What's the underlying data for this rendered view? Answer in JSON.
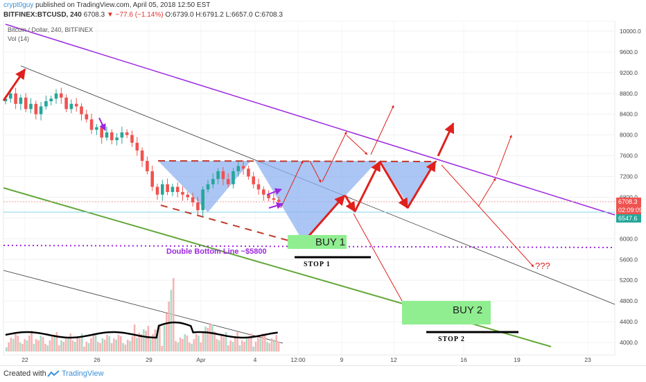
{
  "header": {
    "author": "crypt0guy",
    "published": "published on TradingView.com, April 05, 2018 12:50 EST",
    "symbol": "BITFINEX:BTCUSD, 240",
    "price": "6708.3",
    "change": "▼ −77.6 (−1.14%)",
    "ohlc": "O:6739.0 H:6791.2 L:6657.0 C:6708.3"
  },
  "chart_data": {
    "type": "candlestick",
    "title": "Bitcoin / Dollar, 240, BITFINEX",
    "indicator": "Vol (14)",
    "ylim": [
      3800,
      10200
    ],
    "y_ticks": [
      4000,
      4400,
      4800,
      5200,
      5600,
      6000,
      6400,
      6800,
      7200,
      7600,
      8000,
      8400,
      8800,
      9200,
      9600,
      10000
    ],
    "y_tick_labels": [
      "4000.0",
      "4400.0",
      "4800.0",
      "5200.0",
      "5600.0",
      "6000.0",
      "6400.0",
      "6800.0",
      "7200.0",
      "7600.0",
      "8000.0",
      "8400.0",
      "8800.0",
      "9200.0",
      "9600.0",
      "10000.0"
    ],
    "x_ticks": [
      "22",
      "26",
      "29",
      "Apr",
      "4",
      "12:00",
      "9",
      "12",
      "16",
      "19",
      "23"
    ],
    "price_badges": [
      "6708.3",
      "02:09:09",
      "6547.6"
    ],
    "close": [
      8700,
      8800,
      8600,
      8720,
      8500,
      8600,
      8400,
      8550,
      8650,
      8700,
      8800,
      8720,
      8500,
      8600,
      8550,
      8400,
      8300,
      8100,
      8150,
      7950,
      8050,
      7900,
      7950,
      8050,
      8000,
      7850,
      7700,
      7500,
      7300,
      7000,
      6850,
      7050,
      6900,
      7000,
      6900,
      6850,
      6800,
      6700,
      6550,
      6950,
      7050,
      7150,
      7300,
      7150,
      7050,
      7300,
      7400,
      7350,
      7200,
      7050,
      6950,
      6850,
      6780,
      6750,
      6708
    ]
  },
  "annotations": {
    "double_bottom": "Double Bottom Line ~$5800",
    "buy1": "BUY 1",
    "buy2": "BUY 2",
    "stop1": "STOP 1",
    "stop2": "STOP 2",
    "question": "???"
  },
  "colors": {
    "up": "#26a69a",
    "down": "#ef5350",
    "channel_purple": "#9c27e0",
    "channel_green": "#63a83a",
    "cup_fill": "#8fb3f0",
    "arrow_red": "#e0201c",
    "buy_green": "#90ee90"
  },
  "footer": {
    "created": "Created with",
    "brand": "TradingView"
  }
}
